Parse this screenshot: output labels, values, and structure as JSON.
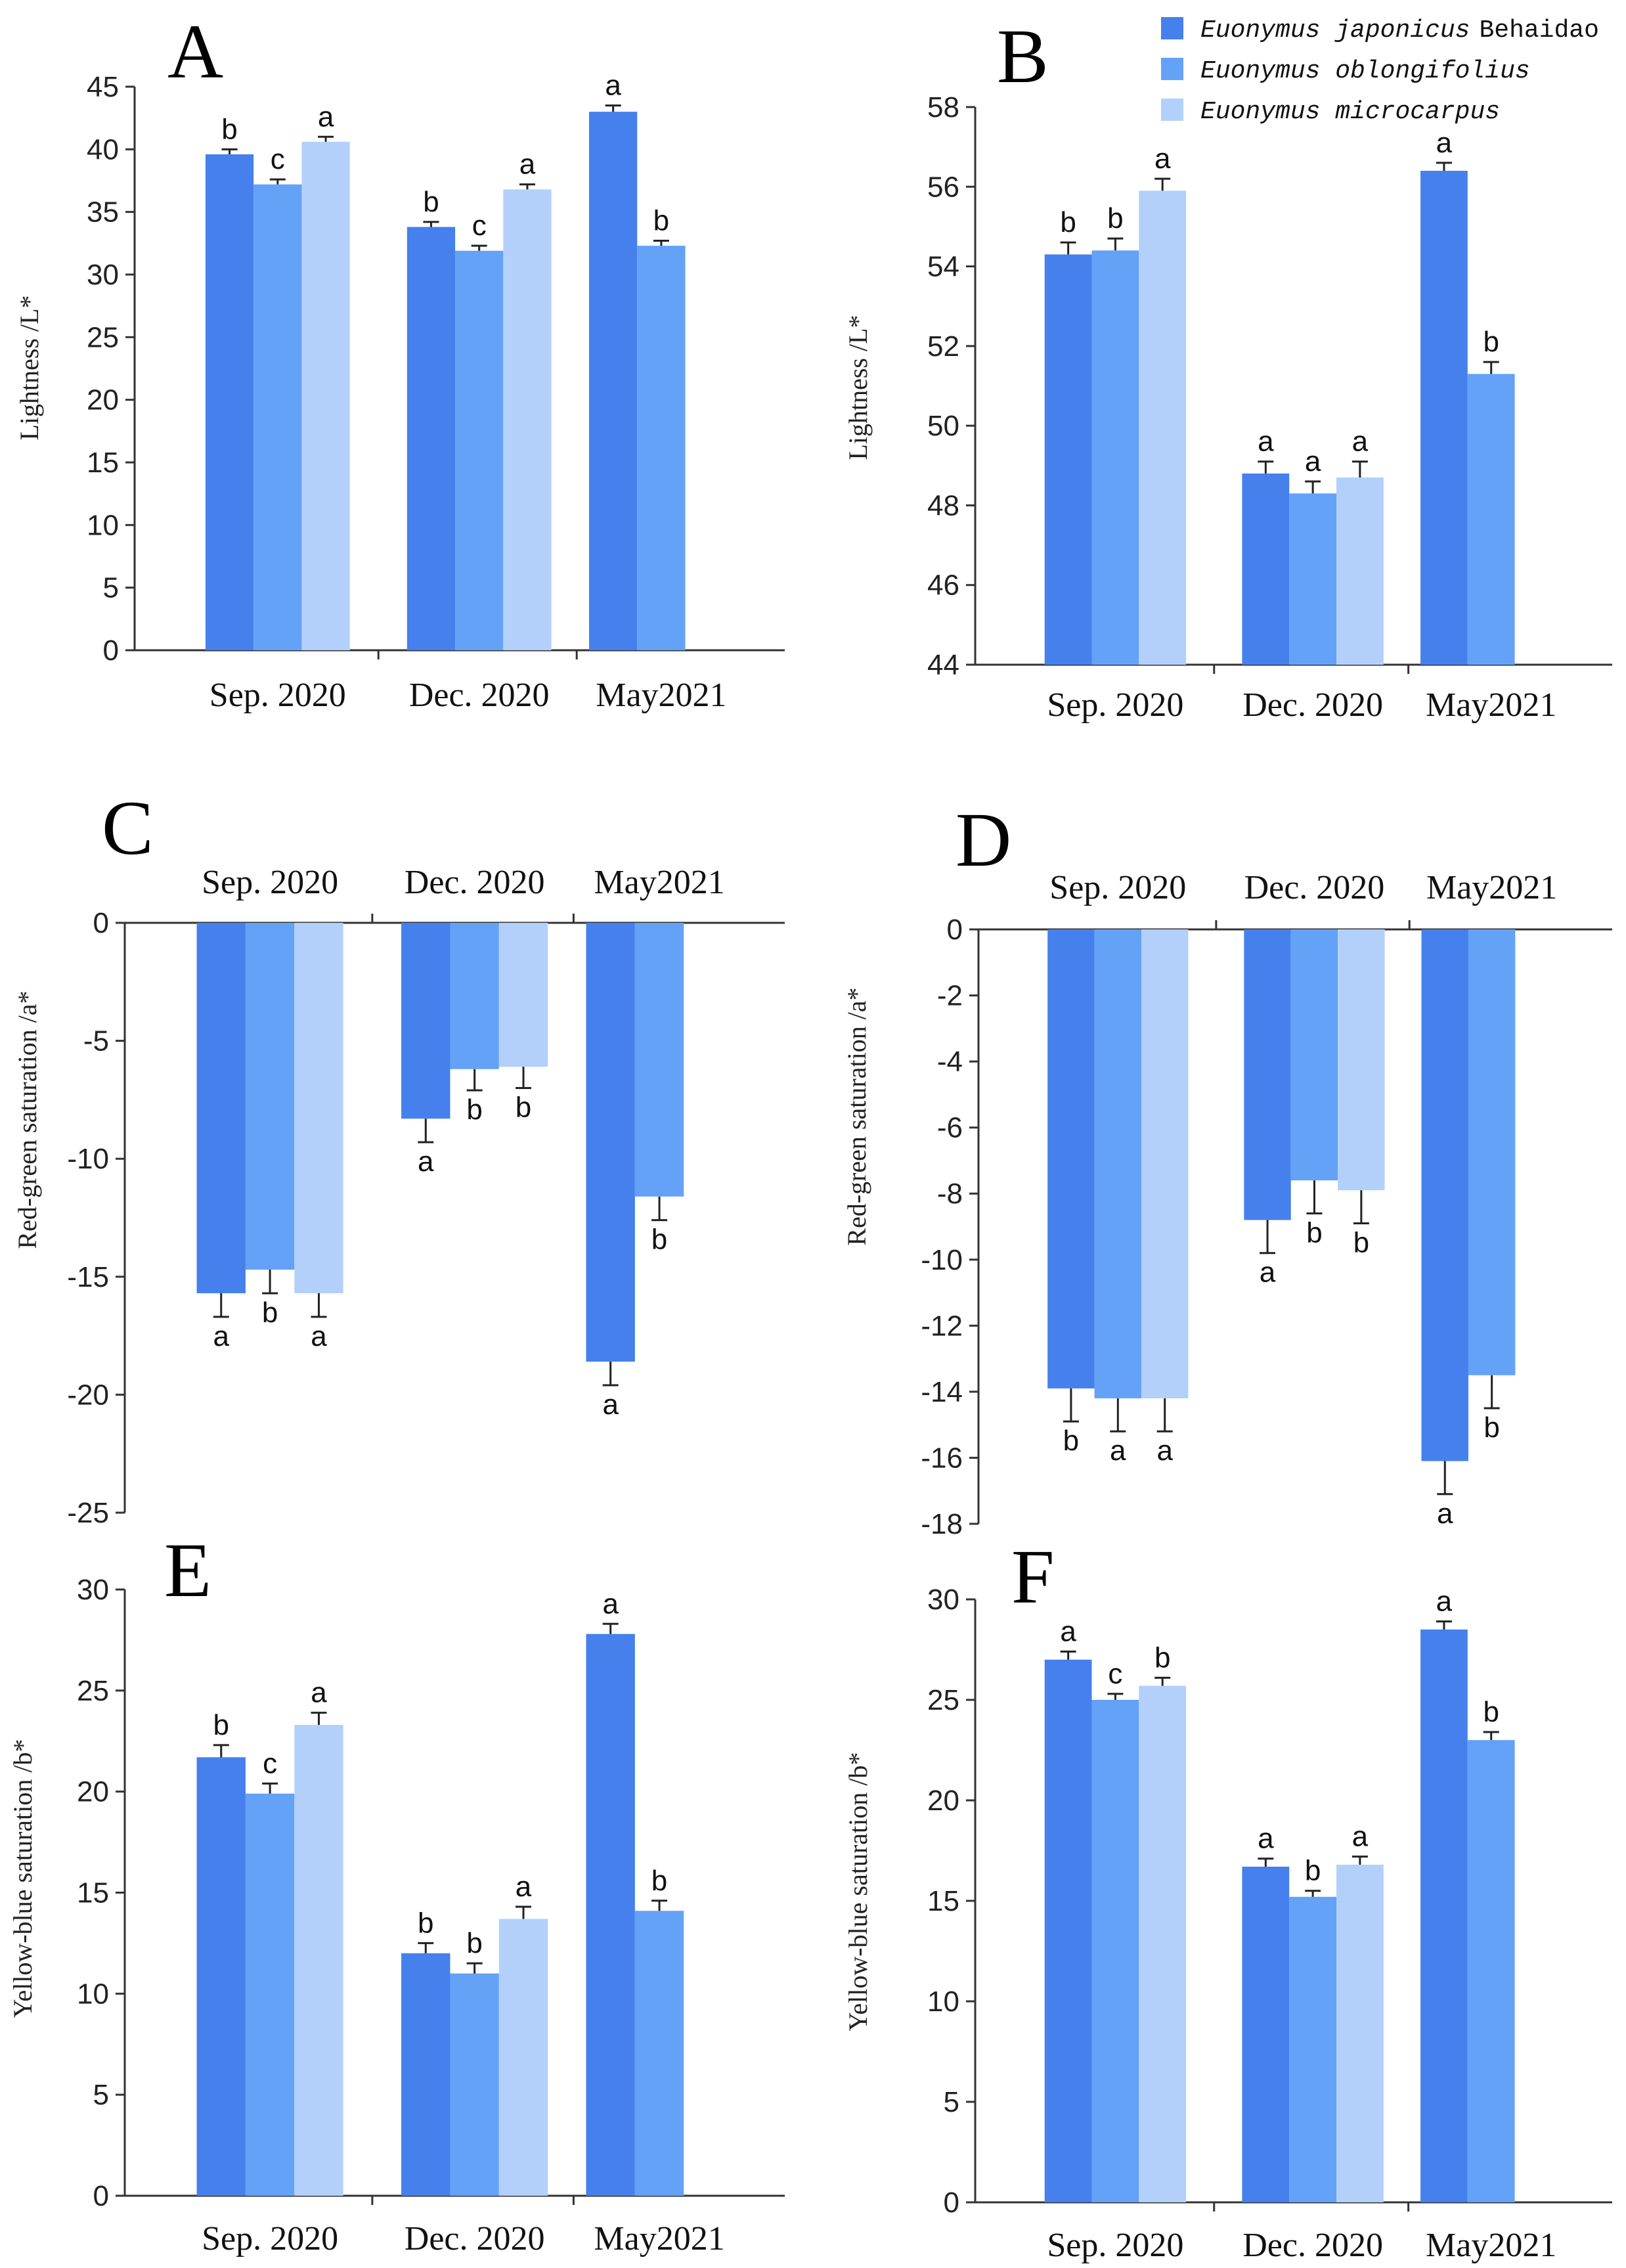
{
  "legend": {
    "entries": [
      {
        "italic": "Euonymus japonicus",
        "plain": "Behaidao"
      },
      {
        "italic": "Euonymus oblongifolius",
        "plain": ""
      },
      {
        "italic": "Euonymus microcarpus",
        "plain": ""
      }
    ]
  },
  "colors": {
    "series": [
      "#4580ec",
      "#63a2f7",
      "#b3d0fb"
    ],
    "axis": "#333333",
    "errorbar": "#222222"
  },
  "chart_data": [
    {
      "panel": "A",
      "type": "bar",
      "ylabel": "Lightness /L*",
      "ylim": [
        0,
        45
      ],
      "yticks": [
        0,
        5,
        10,
        15,
        20,
        25,
        30,
        35,
        40,
        45
      ],
      "categories": [
        "Sep. 2020",
        "Dec. 2020",
        "May2021"
      ],
      "category_position": "bottom",
      "series": [
        {
          "name": "Euonymus japonicus Behaidao",
          "values": [
            39.6,
            33.8,
            43.0
          ],
          "errors": [
            0.4,
            0.4,
            0.5
          ],
          "sig": [
            "b",
            "b",
            "a"
          ]
        },
        {
          "name": "Euonymus oblongifolius",
          "values": [
            37.2,
            31.9,
            32.3
          ],
          "errors": [
            0.4,
            0.4,
            0.4
          ],
          "sig": [
            "c",
            "c",
            "b"
          ]
        },
        {
          "name": "Euonymus microcarpus",
          "values": [
            40.6,
            36.8,
            null
          ],
          "errors": [
            0.4,
            0.4,
            null
          ],
          "sig": [
            "a",
            "a",
            ""
          ]
        }
      ]
    },
    {
      "panel": "B",
      "type": "bar",
      "ylabel": "Lightness /L*",
      "ylim": [
        44,
        58
      ],
      "yticks": [
        44,
        46,
        48,
        50,
        52,
        54,
        56,
        58
      ],
      "categories": [
        "Sep. 2020",
        "Dec. 2020",
        "May2021"
      ],
      "category_position": "bottom",
      "series": [
        {
          "name": "Euonymus japonicus Behaidao",
          "values": [
            54.3,
            48.8,
            56.4
          ],
          "errors": [
            0.3,
            0.3,
            0.2
          ],
          "sig": [
            "b",
            "a",
            "a"
          ]
        },
        {
          "name": "Euonymus oblongifolius",
          "values": [
            54.4,
            48.3,
            51.3
          ],
          "errors": [
            0.3,
            0.3,
            0.3
          ],
          "sig": [
            "b",
            "a",
            "b"
          ]
        },
        {
          "name": "Euonymus microcarpus",
          "values": [
            55.9,
            48.7,
            null
          ],
          "errors": [
            0.3,
            0.4,
            null
          ],
          "sig": [
            "a",
            "a",
            ""
          ]
        }
      ]
    },
    {
      "panel": "C",
      "type": "bar",
      "ylabel": "Red-green saturation /a*",
      "ylim": [
        -25,
        0
      ],
      "yticks": [
        -25,
        -20,
        -15,
        -10,
        -5,
        0
      ],
      "categories": [
        "Sep. 2020",
        "Dec. 2020",
        "May2021"
      ],
      "category_position": "top",
      "series": [
        {
          "name": "Euonymus japonicus Behaidao",
          "values": [
            -15.7,
            -8.3,
            -18.6
          ],
          "errors": [
            1.0,
            1.0,
            1.0
          ],
          "sig": [
            "a",
            "a",
            "a"
          ]
        },
        {
          "name": "Euonymus oblongifolius",
          "values": [
            -14.7,
            -6.2,
            -11.6
          ],
          "errors": [
            1.0,
            0.9,
            1.0
          ],
          "sig": [
            "b",
            "b",
            "b"
          ]
        },
        {
          "name": "Euonymus microcarpus",
          "values": [
            -15.7,
            -6.1,
            null
          ],
          "errors": [
            1.0,
            0.9,
            null
          ],
          "sig": [
            "a",
            "b",
            ""
          ]
        }
      ]
    },
    {
      "panel": "D",
      "type": "bar",
      "ylabel": "Red-green saturation /a*",
      "ylim": [
        -18,
        0
      ],
      "yticks": [
        -18,
        -16,
        -14,
        -12,
        -10,
        -8,
        -6,
        -4,
        -2,
        0
      ],
      "categories": [
        "Sep. 2020",
        "Dec. 2020",
        "May2021"
      ],
      "category_position": "top",
      "series": [
        {
          "name": "Euonymus japonicus Behaidao",
          "values": [
            -13.9,
            -8.8,
            -16.1
          ],
          "errors": [
            1.0,
            1.0,
            1.0
          ],
          "sig": [
            "b",
            "a",
            "a"
          ]
        },
        {
          "name": "Euonymus oblongifolius",
          "values": [
            -14.2,
            -7.6,
            -13.5
          ],
          "errors": [
            1.0,
            1.0,
            1.0
          ],
          "sig": [
            "a",
            "b",
            "b"
          ]
        },
        {
          "name": "Euonymus microcarpus",
          "values": [
            -14.2,
            -7.9,
            null
          ],
          "errors": [
            1.0,
            1.0,
            null
          ],
          "sig": [
            "a",
            "b",
            ""
          ]
        }
      ]
    },
    {
      "panel": "E",
      "type": "bar",
      "ylabel": "Yellow-blue saturation /b*",
      "ylim": [
        0,
        30
      ],
      "yticks": [
        0,
        5,
        10,
        15,
        20,
        25,
        30
      ],
      "categories": [
        "Sep. 2020",
        "Dec. 2020",
        "May2021"
      ],
      "category_position": "bottom",
      "series": [
        {
          "name": "Euonymus japonicus Behaidao",
          "values": [
            21.7,
            12.0,
            27.8
          ],
          "errors": [
            0.6,
            0.5,
            0.5
          ],
          "sig": [
            "b",
            "b",
            "a"
          ]
        },
        {
          "name": "Euonymus oblongifolius",
          "values": [
            19.9,
            11.0,
            14.1
          ],
          "errors": [
            0.5,
            0.5,
            0.5
          ],
          "sig": [
            "c",
            "b",
            "b"
          ]
        },
        {
          "name": "Euonymus microcarpus",
          "values": [
            23.3,
            13.7,
            null
          ],
          "errors": [
            0.6,
            0.6,
            null
          ],
          "sig": [
            "a",
            "a",
            ""
          ]
        }
      ]
    },
    {
      "panel": "F",
      "type": "bar",
      "ylabel": "Yellow-blue saturation /b*",
      "ylim": [
        0,
        30
      ],
      "yticks": [
        0,
        5,
        10,
        15,
        20,
        25,
        30
      ],
      "categories": [
        "Sep. 2020",
        "Dec. 2020",
        "May2021"
      ],
      "category_position": "bottom",
      "series": [
        {
          "name": "Euonymus japonicus Behaidao",
          "values": [
            27.0,
            16.7,
            28.5
          ],
          "errors": [
            0.4,
            0.4,
            0.4
          ],
          "sig": [
            "a",
            "a",
            "a"
          ]
        },
        {
          "name": "Euonymus oblongifolius",
          "values": [
            25.0,
            15.2,
            23.0
          ],
          "errors": [
            0.3,
            0.3,
            0.4
          ],
          "sig": [
            "c",
            "b",
            "b"
          ]
        },
        {
          "name": "Euonymus microcarpus",
          "values": [
            25.7,
            16.8,
            null
          ],
          "errors": [
            0.4,
            0.4,
            null
          ],
          "sig": [
            "b",
            "a",
            ""
          ]
        }
      ]
    }
  ]
}
